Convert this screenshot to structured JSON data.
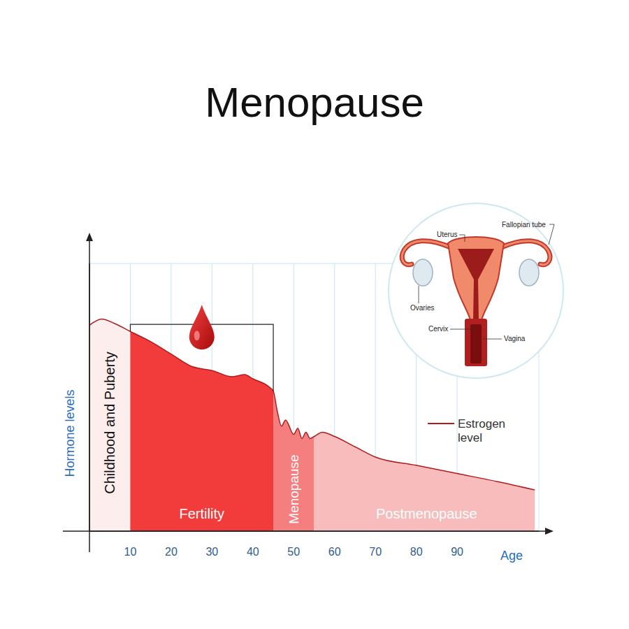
{
  "chart_data": {
    "type": "area",
    "title": "Menopause",
    "xlabel": "Age",
    "ylabel": "Hormone levels",
    "x": [
      0,
      3,
      6,
      10,
      15,
      20,
      25,
      30,
      35,
      38,
      40,
      44,
      45,
      46,
      47,
      48,
      50,
      51,
      52,
      53,
      54,
      55,
      57,
      60,
      65,
      70,
      80,
      90,
      100,
      109
    ],
    "series": [
      {
        "name": "Estrogen level",
        "color": "#b01c1c",
        "values": [
          10.0,
          10.3,
          10.1,
          9.7,
          9.2,
          8.6,
          8.0,
          7.8,
          7.5,
          7.6,
          7.4,
          7.0,
          6.8,
          5.8,
          5.1,
          5.4,
          4.7,
          5.0,
          4.5,
          4.8,
          4.5,
          4.6,
          4.8,
          4.6,
          4.1,
          3.6,
          3.2,
          2.8,
          2.4,
          2.0
        ]
      }
    ],
    "xlim": [
      0,
      110
    ],
    "xticks": [
      10,
      20,
      30,
      40,
      50,
      60,
      70,
      80,
      90
    ],
    "ylim": [
      0,
      13
    ],
    "yticks": [
      0,
      1,
      2,
      3,
      4,
      5,
      6,
      7,
      8,
      9,
      10,
      11,
      12,
      13
    ],
    "tick_labels": "x",
    "grid": true,
    "legend": "right",
    "phases": [
      {
        "label": "Childhood and Puberty",
        "start": 0,
        "end": 10,
        "color": "#fdeeee"
      },
      {
        "label": "Fertility",
        "start": 10,
        "end": 45,
        "color": "#f23b3b"
      },
      {
        "label": "Menopause",
        "start": 45,
        "end": 55,
        "color": "#f57f7f"
      },
      {
        "label": "Postmenopause",
        "start": 55,
        "end": 110,
        "color": "#f8bcbc"
      }
    ]
  },
  "anatomy": {
    "labels": [
      "Fallopian tube",
      "Uterus",
      "Ovaries",
      "Cervix",
      "Vagina"
    ]
  }
}
